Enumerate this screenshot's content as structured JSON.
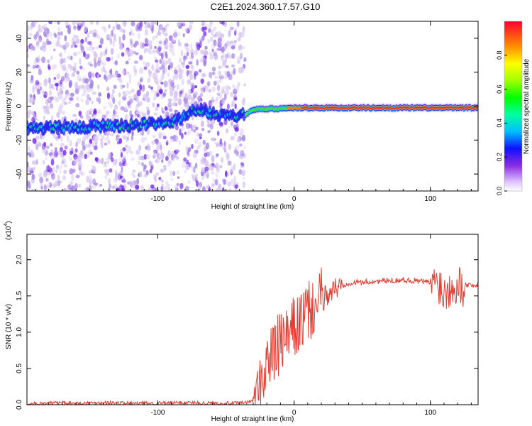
{
  "title": "C2E1.2024.360.17.57.G10",
  "colors": {
    "snr_line": "#e8392f",
    "axis": "#000000",
    "colormap": [
      "#d8c6f0",
      "#a080e0",
      "#6a20e8",
      "#2020f0",
      "#00c8ff",
      "#00e070",
      "#40e040",
      "#e0e000",
      "#ff8000",
      "#ff2020"
    ]
  },
  "chart_data": [
    {
      "type": "heatmap",
      "xlabel": "Height of straight line (km)",
      "ylabel": "Frequency (Hz)",
      "xlim": [
        -196,
        135
      ],
      "ylim": [
        -50,
        50
      ],
      "x_ticks": [
        -100,
        0,
        100
      ],
      "y_ticks": [
        -40,
        -20,
        0,
        20,
        40
      ],
      "colorbar": {
        "label": "Normalized spectral amplitude",
        "range": [
          0.0,
          1.0
        ],
        "ticks": [
          "0.0",
          "0.2",
          "0.4",
          "0.6",
          "0.8"
        ]
      },
      "ridge": [
        {
          "x": -196,
          "f": -13
        },
        {
          "x": -150,
          "f": -12
        },
        {
          "x": -110,
          "f": -11
        },
        {
          "x": -85,
          "f": -8
        },
        {
          "x": -72,
          "f": -2
        },
        {
          "x": -48,
          "f": -6
        },
        {
          "x": -36,
          "f": -5
        },
        {
          "x": -30,
          "f": -2
        },
        {
          "x": 0,
          "f": -1
        },
        {
          "x": 135,
          "f": -1
        }
      ]
    },
    {
      "type": "line",
      "xlabel": "Height of straight line (km)",
      "ylabel": "SNR (10 * v/v)",
      "y_multiplier": "(x10",
      "y_exponent": "4",
      "y_multiplier_close": ")",
      "xlim": [
        -196,
        135
      ],
      "ylim": [
        0.0,
        2.35
      ],
      "x_ticks": [
        -100,
        0,
        100
      ],
      "y_ticks": [
        "0.0",
        "0.5",
        "1.0",
        "1.5",
        "2.0"
      ],
      "series": [
        {
          "x": [
            -196,
            -170,
            -160,
            -140,
            -120,
            -100,
            -80,
            -60,
            -40,
            -30,
            -25,
            -23,
            -20,
            -15,
            -10,
            -5,
            0,
            5,
            10,
            15,
            20,
            30,
            40,
            60,
            80,
            95,
            100,
            103,
            105,
            108,
            112,
            116,
            120,
            125,
            135
          ],
          "y": [
            0.01,
            0.03,
            0.02,
            0.03,
            0.02,
            0.02,
            0.03,
            0.02,
            0.02,
            0.05,
            0.2,
            0.4,
            0.6,
            0.7,
            0.85,
            0.9,
            1.05,
            1.15,
            1.25,
            1.35,
            1.45,
            1.6,
            1.68,
            1.7,
            1.72,
            1.7,
            1.68,
            1.65,
            1.75,
            1.6,
            1.55,
            1.7,
            1.65,
            1.65,
            1.65
          ]
        }
      ]
    }
  ]
}
